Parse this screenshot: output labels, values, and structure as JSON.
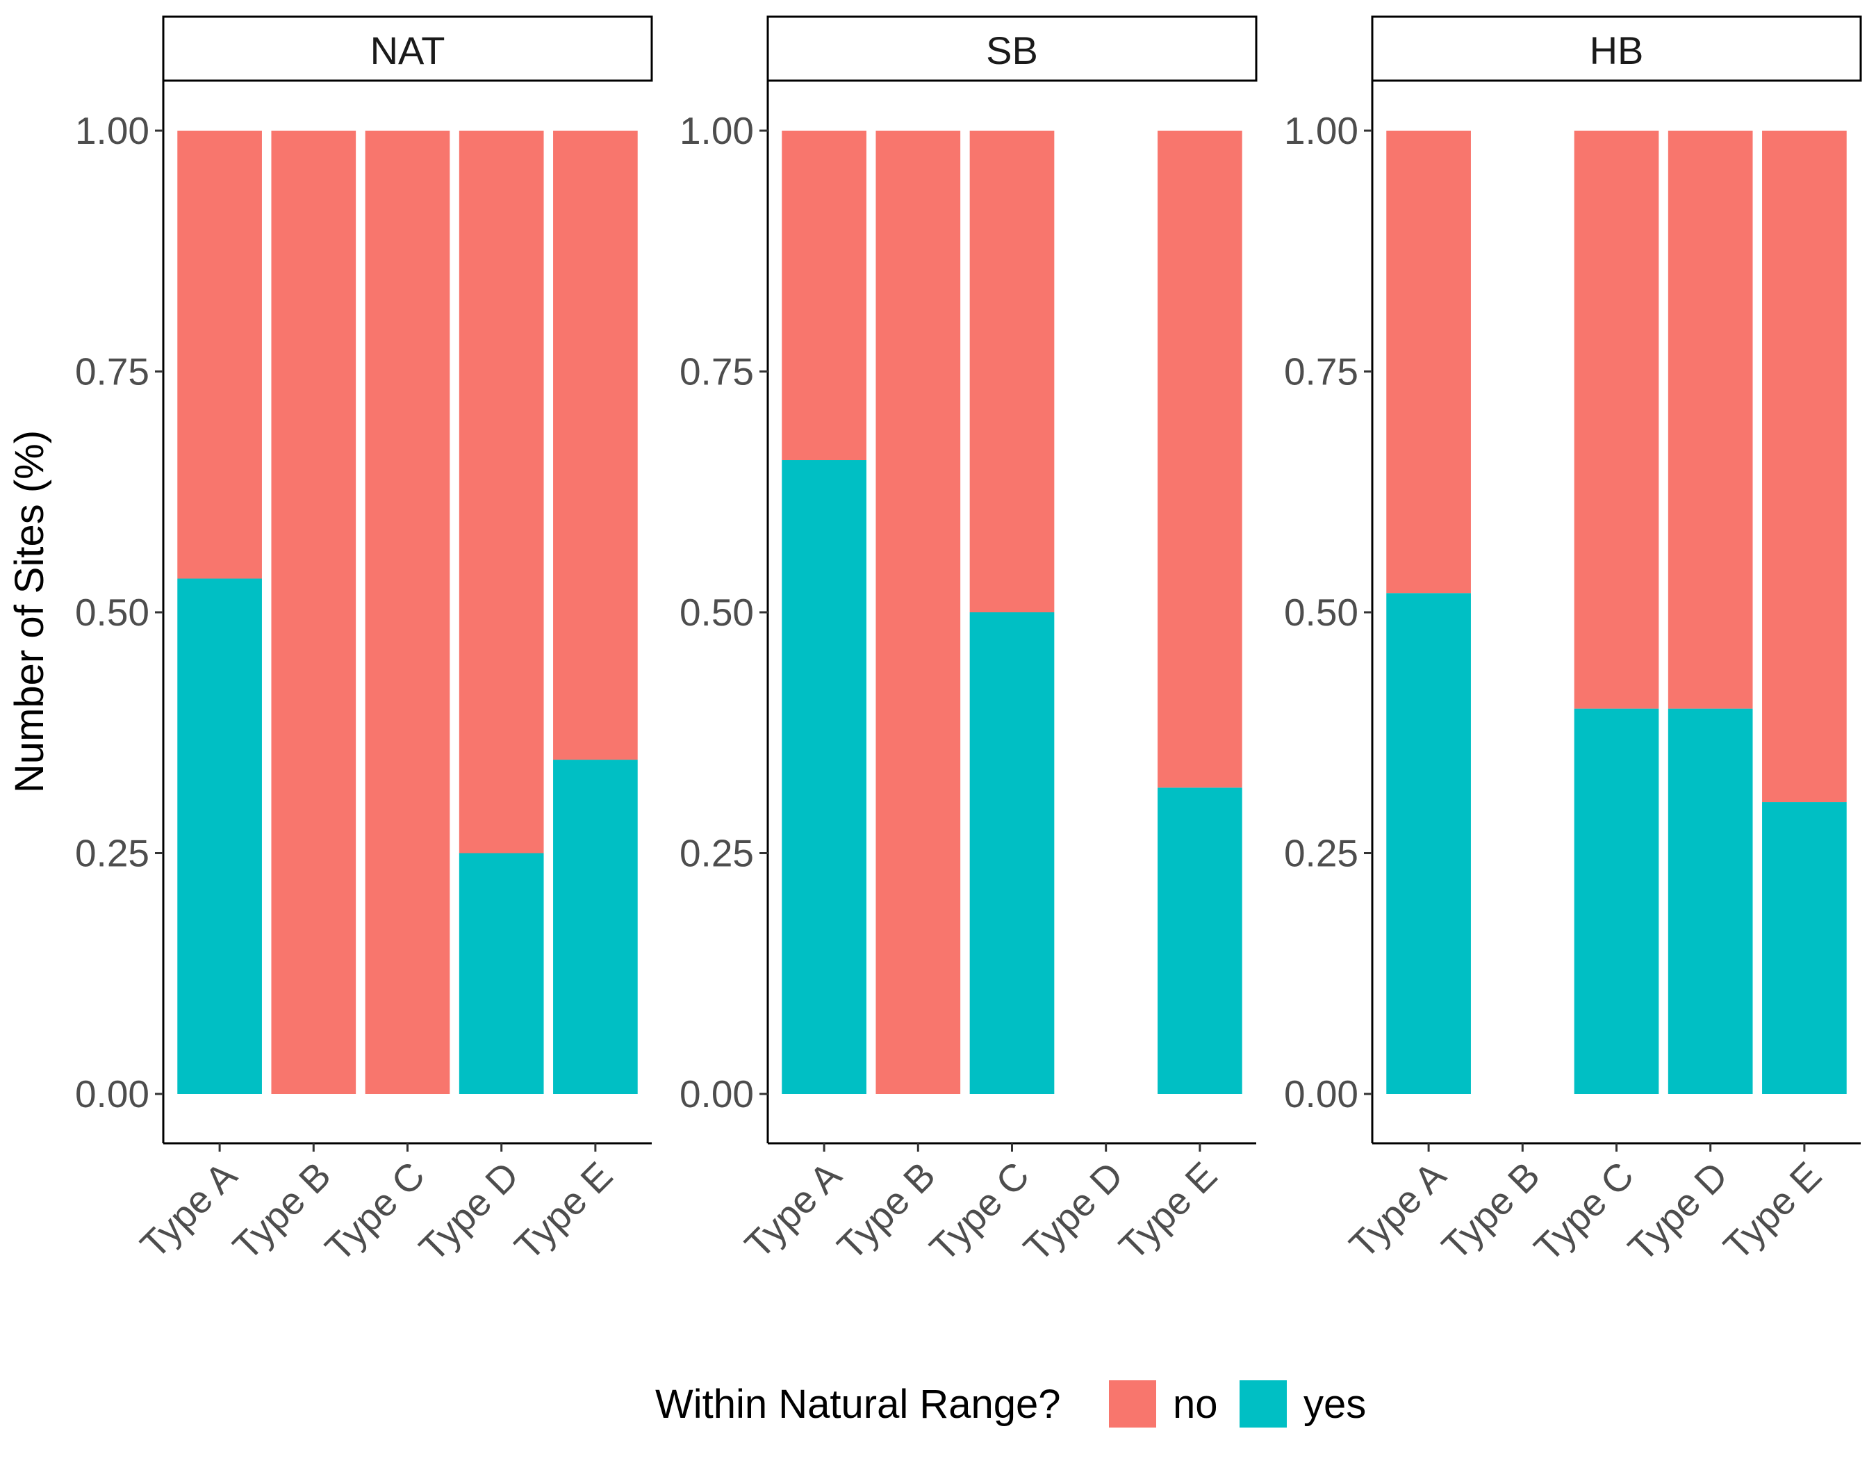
{
  "chart_data": {
    "type": "bar",
    "stacked": true,
    "ylabel": "Number of Sites (%)",
    "xlabel": "",
    "ylim": [
      0,
      1
    ],
    "y_ticks": [
      "0.00",
      "0.25",
      "0.50",
      "0.75",
      "1.00"
    ],
    "categories": [
      "Type A",
      "Type B",
      "Type C",
      "Type D",
      "Type E"
    ],
    "legend": {
      "title": "Within Natural Range?",
      "position": "bottom",
      "entries": [
        {
          "name": "no",
          "color": "#F8766D"
        },
        {
          "name": "yes",
          "color": "#00BFC4"
        }
      ]
    },
    "grid": false,
    "facets": [
      {
        "label": "NAT",
        "series": [
          {
            "name": "yes",
            "values": [
              0.535,
              0,
              0,
              0.25,
              0.347
            ]
          },
          {
            "name": "no",
            "values": [
              0.465,
              1,
              1,
              0.75,
              0.653
            ]
          }
        ]
      },
      {
        "label": "SB",
        "series": [
          {
            "name": "yes",
            "values": [
              0.658,
              0,
              0.5,
              null,
              0.318
            ]
          },
          {
            "name": "no",
            "values": [
              0.342,
              1,
              0.5,
              null,
              0.682
            ]
          }
        ]
      },
      {
        "label": "HB",
        "series": [
          {
            "name": "yes",
            "values": [
              0.52,
              null,
              0.4,
              0.4,
              0.303
            ]
          },
          {
            "name": "no",
            "values": [
              0.48,
              null,
              0.6,
              0.6,
              0.697
            ]
          }
        ]
      }
    ]
  }
}
